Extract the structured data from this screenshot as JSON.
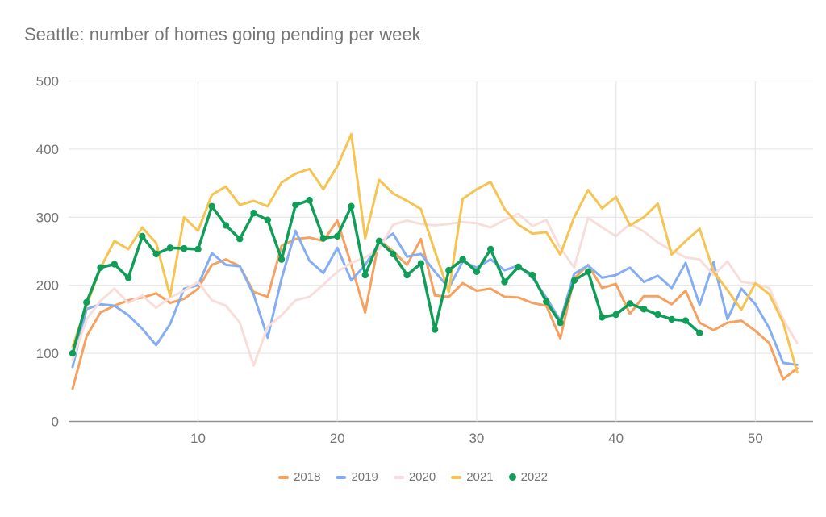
{
  "chart_data": {
    "type": "line",
    "title": "Seattle: number of homes going pending per week",
    "xlabel": "",
    "ylabel": "",
    "x_unit": "week number",
    "x_range": [
      1,
      53
    ],
    "xticks": [
      10,
      20,
      30,
      40,
      50
    ],
    "yticks": [
      0,
      100,
      200,
      300,
      400,
      500
    ],
    "ylim": [
      0,
      500
    ],
    "grid": true,
    "legend_position": "bottom",
    "series": [
      {
        "name": "2018",
        "color": "#f5a160",
        "marker": "none",
        "values": [
          48,
          125,
          160,
          170,
          178,
          182,
          188,
          174,
          180,
          195,
          230,
          238,
          228,
          190,
          183,
          258,
          268,
          270,
          265,
          295,
          230,
          160,
          267,
          250,
          230,
          268,
          185,
          183,
          203,
          192,
          195,
          183,
          182,
          174,
          170,
          122,
          210,
          230,
          196,
          202,
          158,
          184,
          184,
          172,
          192,
          145,
          134,
          145,
          148,
          133,
          115,
          62,
          78
        ]
      },
      {
        "name": "2019",
        "color": "#85aef2",
        "marker": "none",
        "values": [
          80,
          165,
          172,
          170,
          156,
          136,
          112,
          143,
          195,
          200,
          247,
          230,
          228,
          186,
          123,
          210,
          280,
          236,
          218,
          255,
          207,
          230,
          262,
          276,
          242,
          246,
          220,
          196,
          235,
          226,
          238,
          222,
          229,
          211,
          182,
          148,
          217,
          229,
          211,
          215,
          226,
          205,
          214,
          196,
          233,
          171,
          234,
          150,
          195,
          172,
          137,
          86,
          83
        ]
      },
      {
        "name": "2020",
        "color": "#f8dedb",
        "marker": "none",
        "values": [
          90,
          150,
          177,
          195,
          174,
          185,
          167,
          182,
          192,
          205,
          178,
          170,
          145,
          82,
          139,
          156,
          178,
          183,
          201,
          220,
          233,
          241,
          253,
          289,
          295,
          290,
          288,
          290,
          293,
          291,
          285,
          296,
          305,
          287,
          296,
          255,
          226,
          299,
          285,
          272,
          290,
          279,
          263,
          251,
          241,
          238,
          215,
          235,
          205,
          202,
          196,
          150,
          115
        ]
      },
      {
        "name": "2021",
        "color": "#f5c452",
        "marker": "none",
        "values": [
          110,
          170,
          225,
          265,
          253,
          285,
          262,
          184,
          300,
          280,
          333,
          345,
          318,
          324,
          316,
          351,
          364,
          371,
          341,
          375,
          422,
          269,
          355,
          335,
          324,
          312,
          250,
          190,
          327,
          341,
          352,
          312,
          289,
          276,
          278,
          245,
          300,
          340,
          313,
          330,
          288,
          300,
          320,
          245,
          265,
          283,
          220,
          193,
          164,
          203,
          187,
          145,
          72
        ]
      },
      {
        "name": "2022",
        "color": "#0f9d58",
        "marker": "circle",
        "values": [
          100,
          175,
          226,
          231,
          211,
          272,
          246,
          255,
          254,
          253,
          316,
          288,
          268,
          306,
          296,
          238,
          318,
          325,
          269,
          272,
          316,
          215,
          265,
          246,
          215,
          232,
          135,
          222,
          238,
          220,
          253,
          205,
          227,
          215,
          176,
          145,
          207,
          220,
          153,
          157,
          173,
          165,
          157,
          150,
          148,
          130
        ]
      }
    ]
  },
  "styles": {
    "title_color": "#757575",
    "axis_label_color": "#757575",
    "gridline_color": "#e8e8e8",
    "baseline_color": "#8f9499",
    "background": "#ffffff"
  }
}
